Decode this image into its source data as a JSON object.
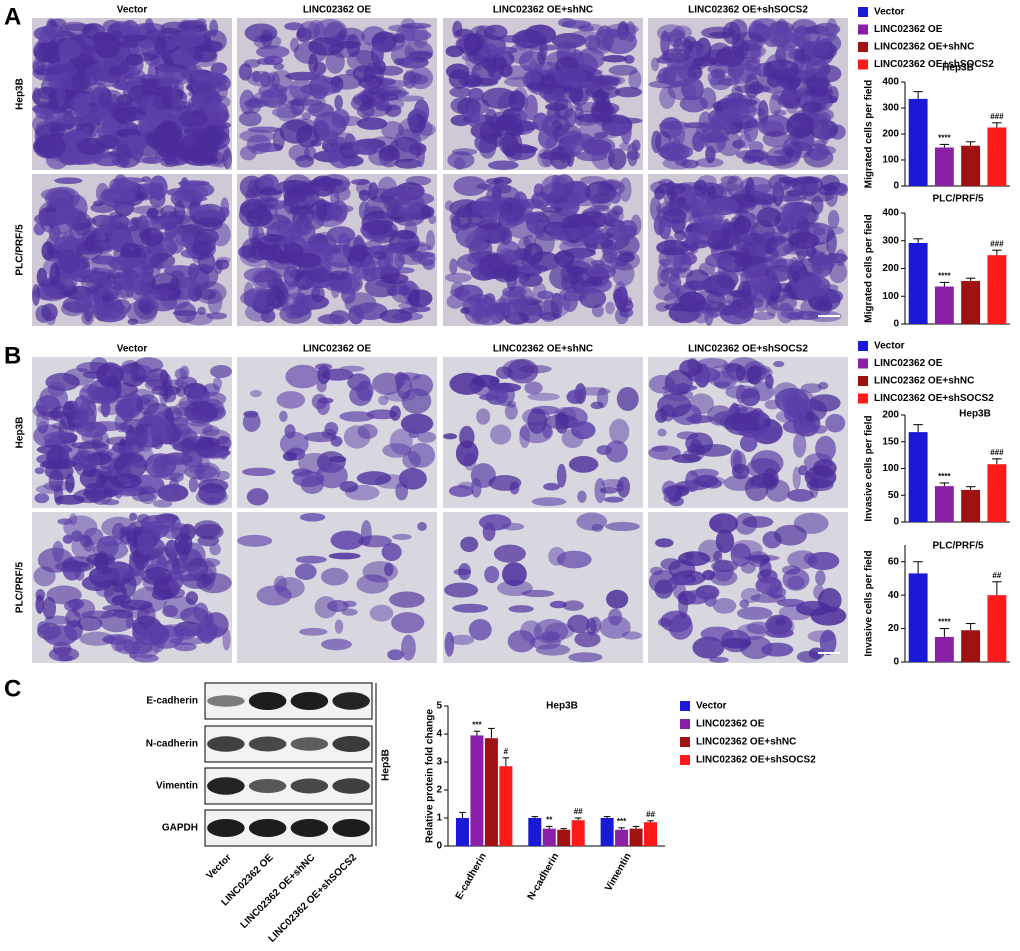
{
  "panel_a": {
    "label": "A",
    "columns": [
      "Vector",
      "LINC02362 OE",
      "LINC02362 OE+shNC",
      "LINC02362 OE+shSOCS2"
    ],
    "rows": [
      "Hep3B",
      "PLC/PRF/5"
    ],
    "legend": [
      {
        "name": "Vector",
        "color": "#1a1ad6"
      },
      {
        "name": "LINC02362 OE",
        "color": "#8a1fa8"
      },
      {
        "name": "LINC02362 OE+shNC",
        "color": "#a01212"
      },
      {
        "name": "LINC02362  OE+shSOCS2",
        "color": "#ff1a1a"
      }
    ]
  },
  "panel_b": {
    "label": "B",
    "columns": [
      "Vector",
      "LINC02362 OE",
      "LINC02362 OE+shNC",
      "LINC02362 OE+shSOCS2"
    ],
    "rows": [
      "Hep3B",
      "PLC/PRF/5"
    ],
    "legend": [
      {
        "name": "Vector",
        "color": "#1a1ad6"
      },
      {
        "name": "LINC02362 OE",
        "color": "#8a1fa8"
      },
      {
        "name": "LINC02362 OE+shNC",
        "color": "#a01212"
      },
      {
        "name": "LINC02362  OE+shSOCS2",
        "color": "#ff1a1a"
      }
    ]
  },
  "panel_c": {
    "label": "C",
    "blot_rows": [
      "E-cadherin",
      "N-cadherin",
      "Vimentin",
      "GAPDH"
    ],
    "lanes": [
      "Vector",
      "LINC02362 OE",
      "LINC02362 OE+shNC",
      "LINC02362 OE+shSOCS2"
    ],
    "cell_line": "Hep3B"
  },
  "chart_data": [
    {
      "type": "bar",
      "title": "Hep3B",
      "y_label": "Migrated cells per field",
      "categories": [
        null,
        null,
        null,
        null
      ],
      "values": [
        335,
        148,
        155,
        225
      ],
      "errors": [
        28,
        12,
        15,
        18
      ],
      "colors": [
        "#1a1ad6",
        "#8a1fa8",
        "#a01212",
        "#ff1a1a"
      ],
      "significance": [
        null,
        "****",
        null,
        "###"
      ],
      "ylim": [
        0,
        400
      ],
      "yticks": [
        0,
        100,
        200,
        300,
        400
      ]
    },
    {
      "type": "bar",
      "title": "PLC/PRF/5",
      "y_label": "Migrated cells per field",
      "categories": [
        null,
        null,
        null,
        null
      ],
      "values": [
        292,
        135,
        155,
        248
      ],
      "errors": [
        15,
        15,
        10,
        18
      ],
      "colors": [
        "#1a1ad6",
        "#8a1fa8",
        "#a01212",
        "#ff1a1a"
      ],
      "significance": [
        null,
        "****",
        null,
        "###"
      ],
      "ylim": [
        0,
        400
      ],
      "yticks": [
        0,
        100,
        200,
        300,
        400
      ]
    },
    {
      "type": "bar",
      "title": "Hep3B",
      "y_label": "Invasive cells per field",
      "categories": [
        null,
        null,
        null,
        null
      ],
      "values": [
        168,
        67,
        60,
        108
      ],
      "errors": [
        14,
        6,
        6,
        10
      ],
      "colors": [
        "#1a1ad6",
        "#8a1fa8",
        "#a01212",
        "#ff1a1a"
      ],
      "significance": [
        null,
        "****",
        null,
        "###"
      ],
      "ylim": [
        0,
        200
      ],
      "yticks": [
        0,
        50,
        100,
        150,
        200
      ]
    },
    {
      "type": "bar",
      "title": "PLC/PRF/5",
      "y_label": "Invasive cells per field",
      "categories": [
        null,
        null,
        null,
        null
      ],
      "values": [
        53,
        15,
        19,
        40
      ],
      "errors": [
        7,
        5,
        4,
        8
      ],
      "colors": [
        "#1a1ad6",
        "#8a1fa8",
        "#a01212",
        "#ff1a1a"
      ],
      "significance": [
        null,
        "****",
        null,
        "##"
      ],
      "ylim": [
        0,
        70
      ],
      "yticks": [
        0,
        20,
        40,
        60
      ]
    },
    {
      "type": "grouped_bar",
      "title": "Hep3B",
      "y_label": "Relative protein fold change",
      "categories": [
        "E-cadherin",
        "N-cadherin",
        "Vimentin"
      ],
      "series": [
        {
          "name": "Vector",
          "color": "#1a1ad6",
          "values": [
            1.0,
            1.0,
            1.0
          ],
          "errors": [
            0.2,
            0.05,
            0.05
          ],
          "significance": [
            null,
            null,
            null
          ]
        },
        {
          "name": "LINC02362 OE",
          "color": "#8a1fa8",
          "values": [
            3.95,
            0.62,
            0.58
          ],
          "errors": [
            0.15,
            0.08,
            0.07
          ],
          "significance": [
            "***",
            "**",
            "***"
          ]
        },
        {
          "name": "LINC02362 OE+shNC",
          "color": "#a01212",
          "values": [
            3.85,
            0.58,
            0.62
          ],
          "errors": [
            0.35,
            0.04,
            0.08
          ],
          "significance": [
            null,
            null,
            null
          ]
        },
        {
          "name": "LINC02362 OE+shSOCS2",
          "color": "#ff1a1a",
          "values": [
            2.85,
            0.92,
            0.85
          ],
          "errors": [
            0.3,
            0.08,
            0.05
          ],
          "significance": [
            "#",
            "##",
            "##"
          ]
        }
      ],
      "ylim": [
        0,
        5
      ],
      "yticks": [
        0,
        1,
        2,
        3,
        4,
        5
      ]
    }
  ]
}
